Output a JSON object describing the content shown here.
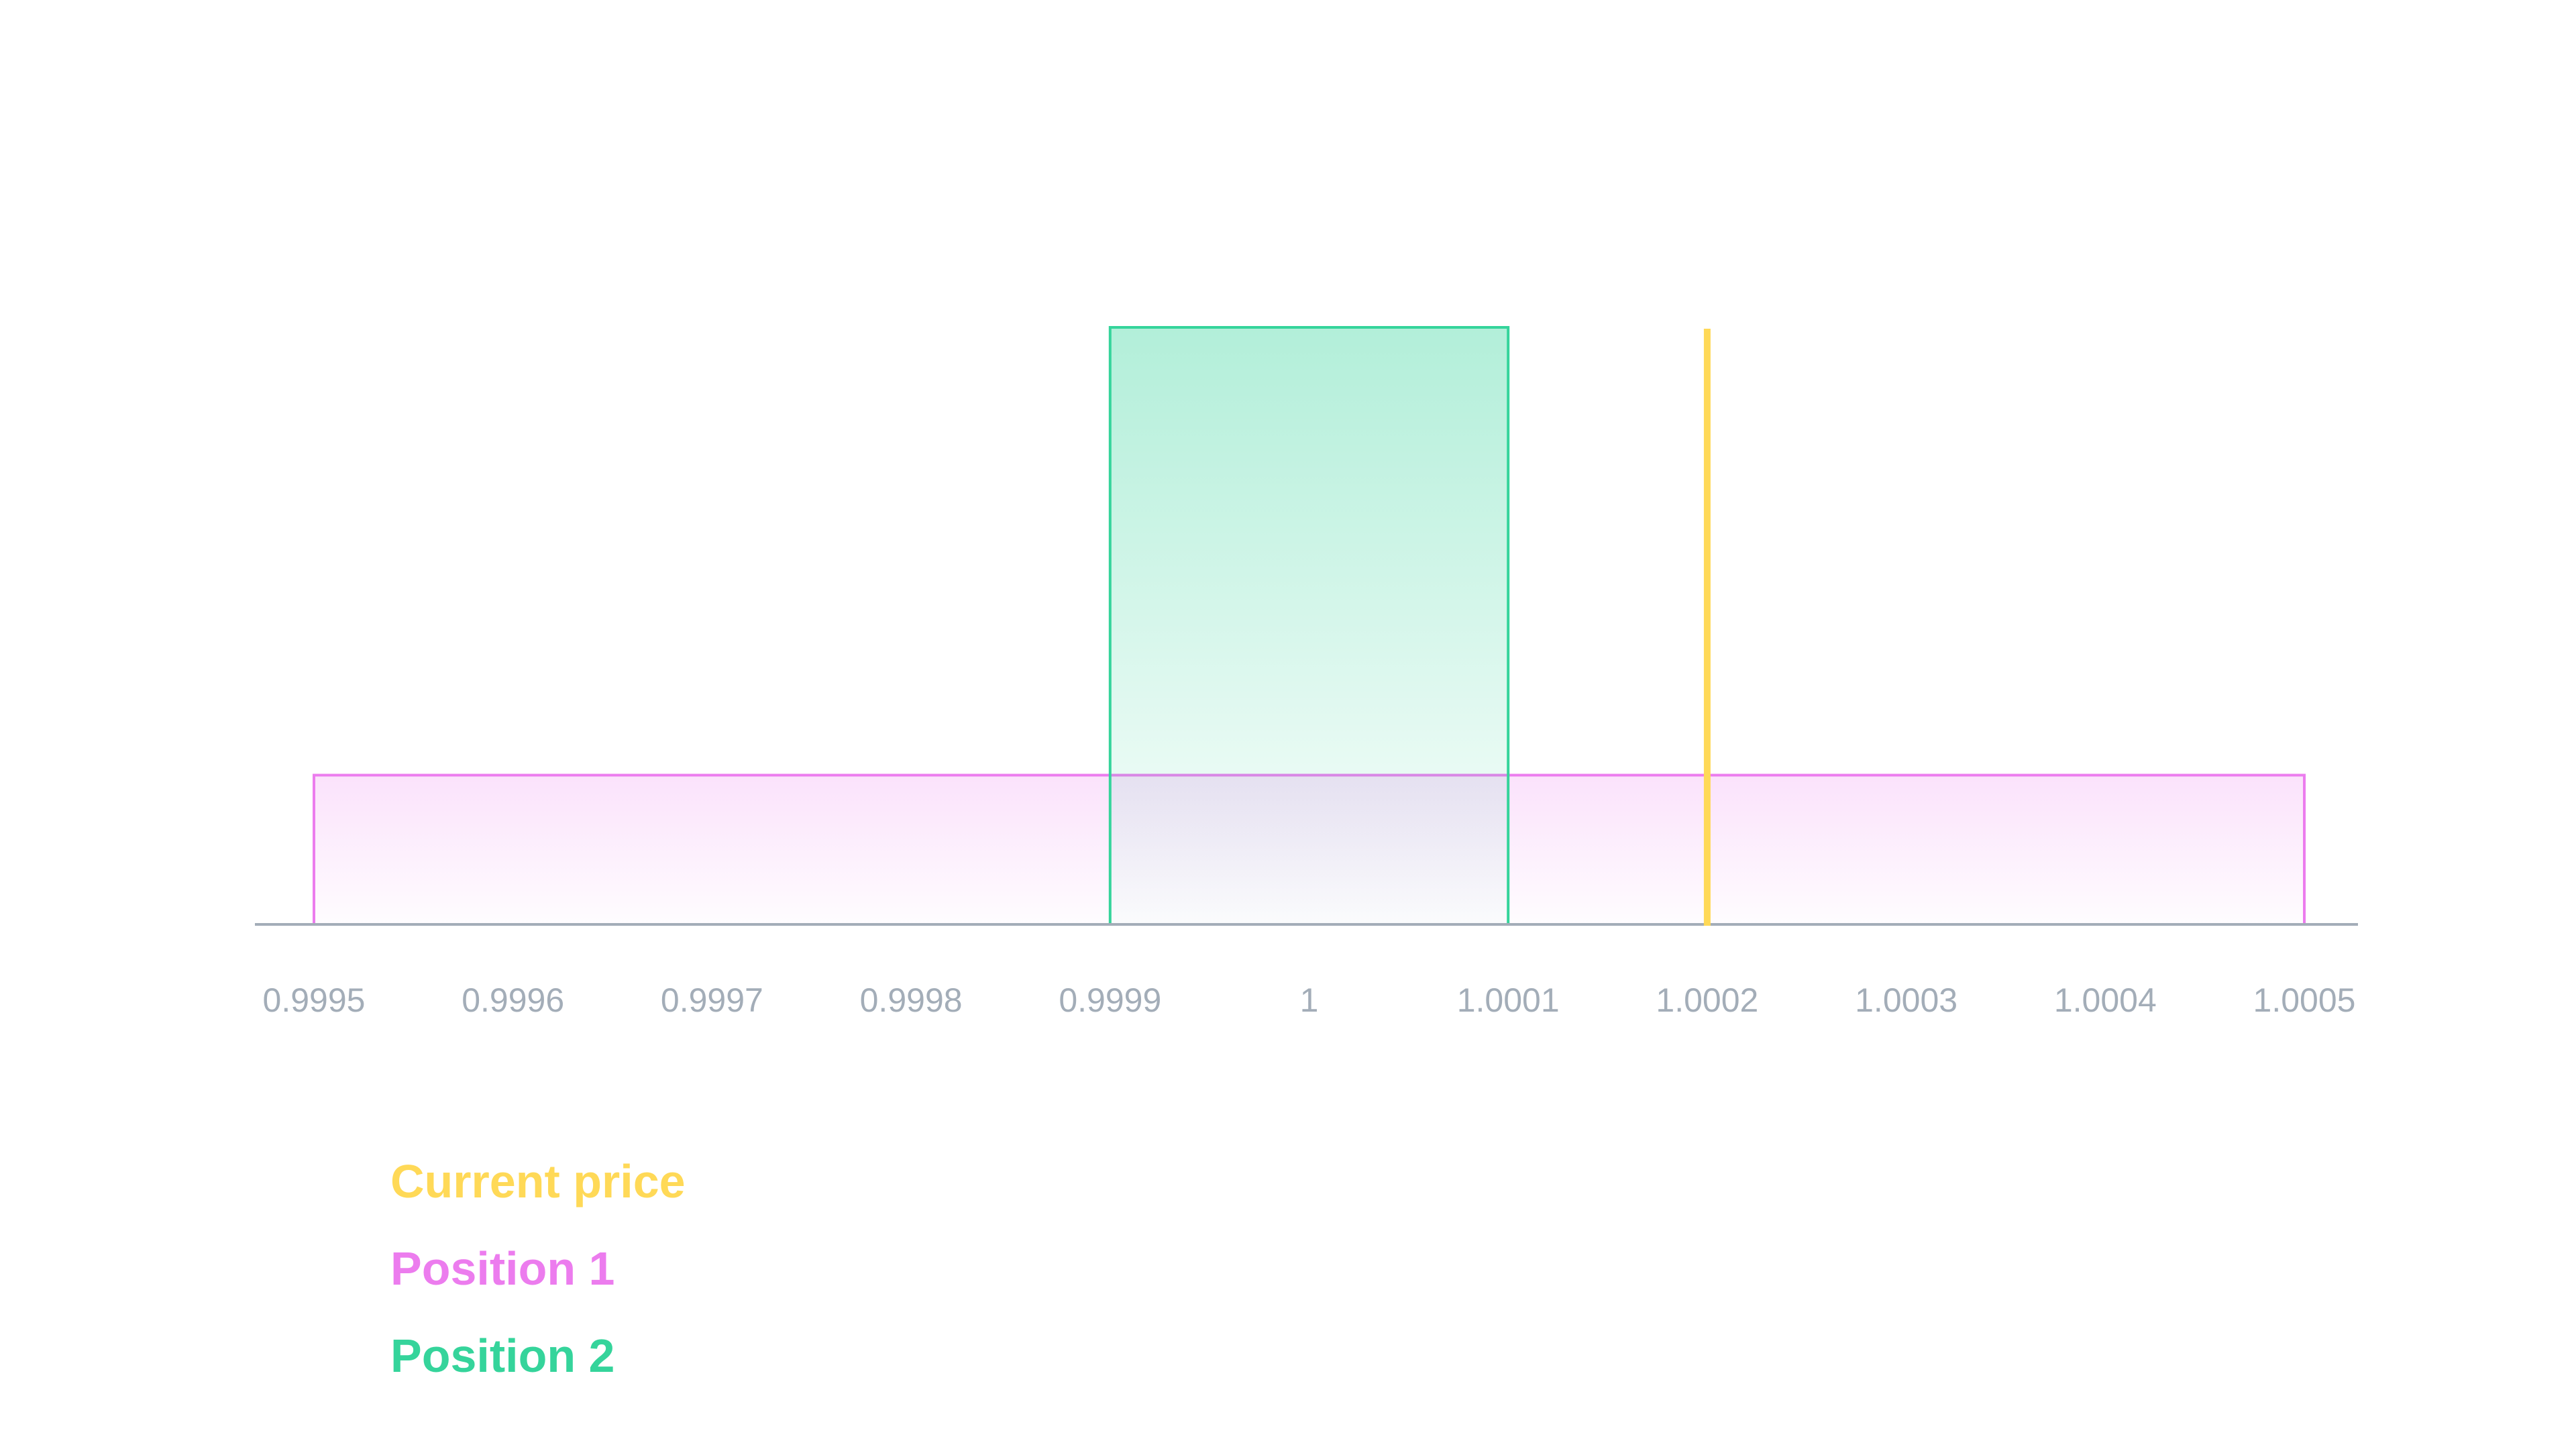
{
  "chart_data": {
    "type": "range-liquidity",
    "x_ticks": [
      "0.9995",
      "0.9996",
      "0.9997",
      "0.9998",
      "0.9999",
      "1",
      "1.0001",
      "1.0002",
      "1.0003",
      "1.0004",
      "1.0005"
    ],
    "xlim": [
      0.9995,
      1.0005
    ],
    "ylim": [
      0,
      3
    ],
    "grid": false,
    "legend_position": "bottom-left",
    "current_price": {
      "name": "Current price",
      "value": 1.0002,
      "color": "#ffd957"
    },
    "positions": [
      {
        "name": "Position 1",
        "price_lower": 0.9995,
        "price_upper": 1.0005,
        "liquidity": 0.75,
        "color": "#ec7cee"
      },
      {
        "name": "Position 2",
        "price_lower": 0.9999,
        "price_upper": 1.0001,
        "liquidity": 3.0,
        "color": "#35d49b"
      }
    ],
    "axis_color": "#a3adb8"
  },
  "legend": {
    "items": [
      {
        "label": "Current price",
        "color": "#ffd957"
      },
      {
        "label": "Position 1",
        "color": "#ec7cee"
      },
      {
        "label": "Position 2",
        "color": "#35d49b"
      }
    ]
  }
}
